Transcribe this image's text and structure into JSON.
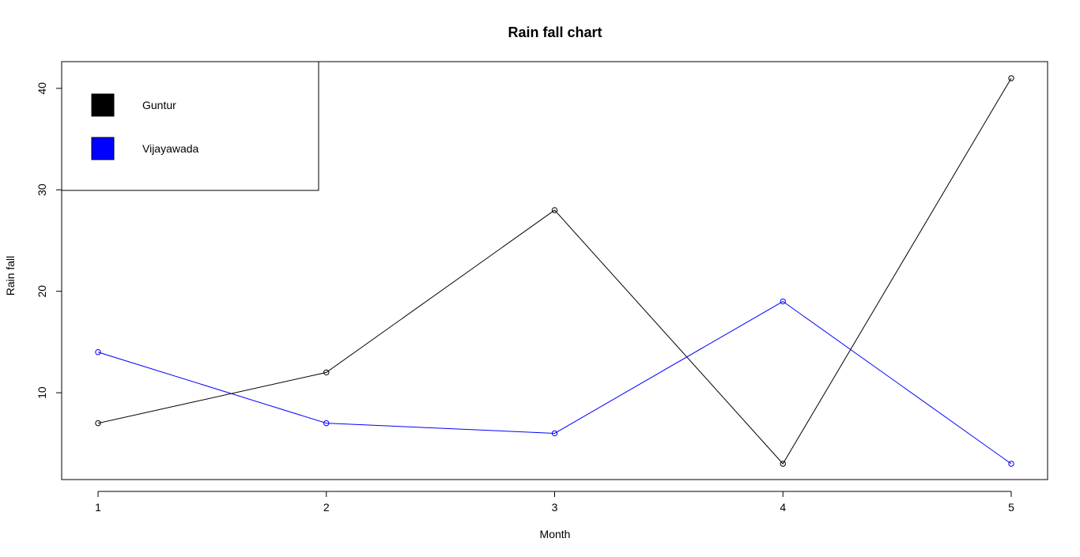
{
  "chart_data": {
    "type": "line",
    "title": "Rain fall chart",
    "xlabel": "Month",
    "ylabel": "Rain fall",
    "x": [
      1,
      2,
      3,
      4,
      5
    ],
    "x_ticks": [
      "1",
      "2",
      "3",
      "4",
      "5"
    ],
    "y_ticks": [
      "10",
      "20",
      "30",
      "40"
    ],
    "ylim": [
      3,
      41
    ],
    "grid": false,
    "legend_position": "top-left",
    "series": [
      {
        "name": "Guntur",
        "color": "#000000",
        "values": [
          7,
          12,
          28,
          3,
          41
        ]
      },
      {
        "name": "Vijayawada",
        "color": "#0000ff",
        "values": [
          14,
          7,
          6,
          19,
          3
        ]
      }
    ]
  }
}
